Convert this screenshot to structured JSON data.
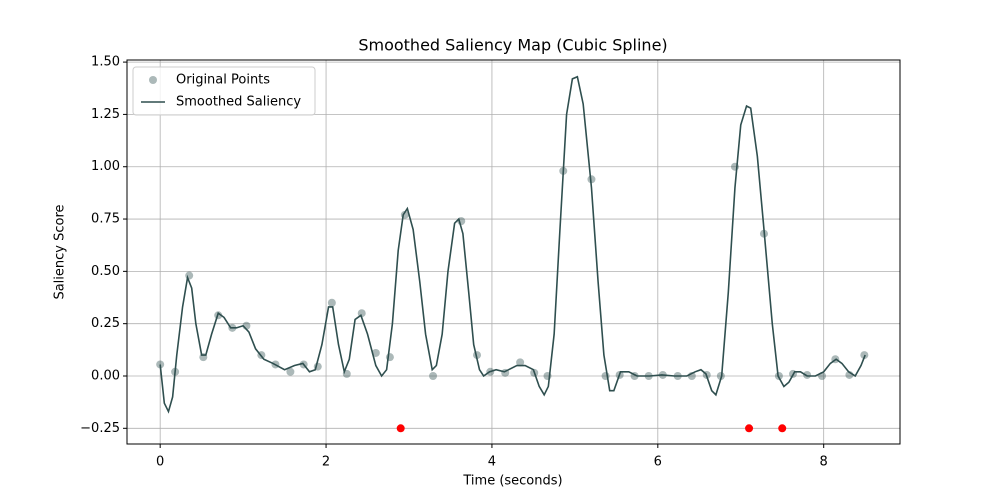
{
  "chart_data": {
    "type": "scatter",
    "title": "Smoothed Saliency Map (Cubic Spline)",
    "x_label": "Time (seconds)",
    "y_label": "Saliency Score",
    "xlim": [
      -0.4,
      8.92
    ],
    "ylim": [
      -0.325,
      1.51
    ],
    "xticks": [
      0,
      2,
      4,
      6,
      8
    ],
    "yticks": [
      {
        "value": -0.25,
        "label": "−0.25"
      },
      {
        "value": 0,
        "label": "0.00"
      },
      0.25,
      {
        "value": 0.5,
        "label": "0.50"
      },
      0.75,
      {
        "value": 1,
        "label": "1.00"
      },
      1.25,
      {
        "value": 1.5,
        "label": "1.50"
      }
    ],
    "grid": true,
    "legend": "upper left",
    "series": [
      {
        "name": "Original Points",
        "kind": "scatter",
        "color": "#2f4f4f",
        "opacity": 0.4,
        "x": [
          0,
          0.18,
          0.35,
          0.52,
          0.7,
          0.87,
          1.04,
          1.22,
          1.39,
          1.57,
          1.73,
          1.9,
          2.07,
          2.25,
          2.43,
          2.6,
          2.77,
          2.95,
          3.29,
          3.63,
          3.82,
          3.98,
          4.16,
          4.34,
          4.51,
          4.67,
          4.86,
          5.2,
          5.37,
          5.54,
          5.72,
          5.89,
          6.06,
          6.24,
          6.41,
          6.59,
          6.76,
          6.93,
          7.28,
          7.46,
          7.63,
          7.8,
          7.98,
          8.14,
          8.31,
          8.49
        ],
        "values": [
          0.055,
          0.02,
          0.48,
          0.09,
          0.29,
          0.23,
          0.24,
          0.1,
          0.055,
          0.02,
          0.055,
          0.045,
          0.35,
          0.01,
          0.3,
          0.11,
          0.09,
          0.77,
          0,
          0.74,
          0.1,
          0.02,
          0.015,
          0.065,
          0.015,
          0,
          0.98,
          0.94,
          0,
          0.005,
          0,
          0,
          0.005,
          0,
          0,
          0.005,
          0,
          1.0,
          0.68,
          0,
          0.01,
          0.005,
          0,
          0.08,
          0.005,
          0.1
        ]
      },
      {
        "name": "Smoothed Saliency",
        "kind": "line",
        "color": "#2f4f4f",
        "x": [
          0,
          0.05,
          0.1,
          0.15,
          0.2,
          0.27,
          0.33,
          0.38,
          0.43,
          0.5,
          0.55,
          0.62,
          0.7,
          0.77,
          0.85,
          0.92,
          1.0,
          1.07,
          1.15,
          1.25,
          1.36,
          1.5,
          1.62,
          1.72,
          1.8,
          1.87,
          1.95,
          2.03,
          2.08,
          2.15,
          2.22,
          2.28,
          2.35,
          2.42,
          2.5,
          2.6,
          2.67,
          2.73,
          2.8,
          2.87,
          2.93,
          2.98,
          3.05,
          3.13,
          3.2,
          3.28,
          3.33,
          3.4,
          3.47,
          3.55,
          3.6,
          3.65,
          3.72,
          3.78,
          3.85,
          3.9,
          3.97,
          4.05,
          4.15,
          4.3,
          4.4,
          4.5,
          4.57,
          4.63,
          4.68,
          4.75,
          4.82,
          4.9,
          4.97,
          5.03,
          5.1,
          5.2,
          5.28,
          5.35,
          5.42,
          5.47,
          5.55,
          5.65,
          5.75,
          5.9,
          6.05,
          6.2,
          6.35,
          6.45,
          6.52,
          6.58,
          6.65,
          6.7,
          6.77,
          6.85,
          6.93,
          7.0,
          7.07,
          7.12,
          7.2,
          7.28,
          7.38,
          7.45,
          7.52,
          7.58,
          7.65,
          7.72,
          7.8,
          7.9,
          8.0,
          8.08,
          8.15,
          8.22,
          8.3,
          8.38,
          8.45,
          8.5
        ],
        "values": [
          0.055,
          -0.13,
          -0.17,
          -0.1,
          0.1,
          0.33,
          0.47,
          0.42,
          0.25,
          0.1,
          0.1,
          0.2,
          0.3,
          0.28,
          0.23,
          0.23,
          0.24,
          0.21,
          0.13,
          0.08,
          0.06,
          0.03,
          0.05,
          0.06,
          0.02,
          0.03,
          0.15,
          0.33,
          0.33,
          0.15,
          0.02,
          0.08,
          0.27,
          0.29,
          0.2,
          0.05,
          0,
          0.03,
          0.25,
          0.6,
          0.77,
          0.8,
          0.7,
          0.45,
          0.2,
          0.03,
          0.05,
          0.2,
          0.5,
          0.73,
          0.75,
          0.68,
          0.4,
          0.15,
          0.03,
          0,
          0.02,
          0.03,
          0.02,
          0.05,
          0.05,
          0.03,
          -0.05,
          -0.09,
          -0.05,
          0.2,
          0.7,
          1.25,
          1.42,
          1.43,
          1.3,
          0.9,
          0.45,
          0.1,
          -0.07,
          -0.07,
          0.02,
          0.02,
          0,
          0,
          0.005,
          0,
          0,
          0.02,
          0.03,
          0.01,
          -0.07,
          -0.09,
          0,
          0.4,
          0.9,
          1.2,
          1.29,
          1.28,
          1.05,
          0.7,
          0.25,
          0,
          -0.05,
          -0.03,
          0.02,
          0.02,
          0,
          0,
          0.02,
          0.06,
          0.08,
          0.06,
          0.02,
          0,
          0.05,
          0.1
        ]
      },
      {
        "kind": "scatter",
        "color": "#ff0000",
        "opacity": 1,
        "x": [
          2.9,
          7.1,
          7.5
        ],
        "values": [
          -0.25,
          -0.25,
          -0.25
        ]
      }
    ]
  }
}
